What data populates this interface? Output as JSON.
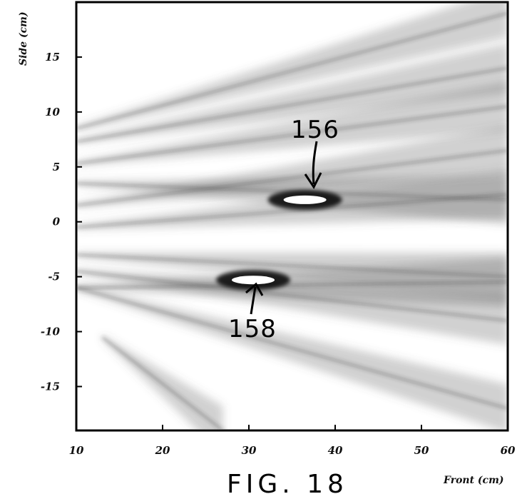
{
  "figure_caption": "FIG. 18",
  "chart_data": {
    "type": "heatmap",
    "xlabel": "Front (cm)",
    "ylabel": "Side (cm)",
    "xlim": [
      10,
      60
    ],
    "ylim": [
      -19,
      20
    ],
    "x_ticks": [
      "10",
      "20",
      "30",
      "40",
      "50",
      "60"
    ],
    "y_ticks": [
      "15",
      "10",
      "5",
      "0",
      "-5",
      "-10",
      "-15"
    ],
    "x_tick_values": [
      10,
      20,
      30,
      40,
      50,
      60
    ],
    "y_tick_values": [
      15,
      10,
      5,
      0,
      -5,
      -10,
      -15
    ],
    "grid": false,
    "colormap": "grayscale, darker = higher intensity",
    "hotspots": [
      {
        "label": "156",
        "x": 36.5,
        "y": 2.0
      },
      {
        "label": "158",
        "x": 30.5,
        "y": -5.3
      }
    ],
    "beams": [
      {
        "from": [
          10,
          8.5
        ],
        "to": [
          60,
          19.0
        ]
      },
      {
        "from": [
          10,
          7.3
        ],
        "to": [
          60,
          14.0
        ]
      },
      {
        "from": [
          10,
          5.3
        ],
        "to": [
          60,
          10.5
        ]
      },
      {
        "from": [
          10,
          3.5
        ],
        "to": [
          60,
          2.0
        ]
      },
      {
        "from": [
          10,
          1.5
        ],
        "to": [
          60,
          6.5
        ]
      },
      {
        "from": [
          10,
          -0.5
        ],
        "to": [
          60,
          2.5
        ]
      },
      {
        "from": [
          10,
          -3.0
        ],
        "to": [
          60,
          -5.0
        ]
      },
      {
        "from": [
          10,
          -4.5
        ],
        "to": [
          60,
          -9.0
        ]
      },
      {
        "from": [
          10,
          -6.0
        ],
        "to": [
          60,
          -17.0
        ]
      },
      {
        "from": [
          10,
          -6.0
        ],
        "to": [
          60,
          -5.5
        ]
      },
      {
        "from": [
          13,
          -10.5
        ],
        "to": [
          27,
          -19.0
        ]
      }
    ]
  }
}
